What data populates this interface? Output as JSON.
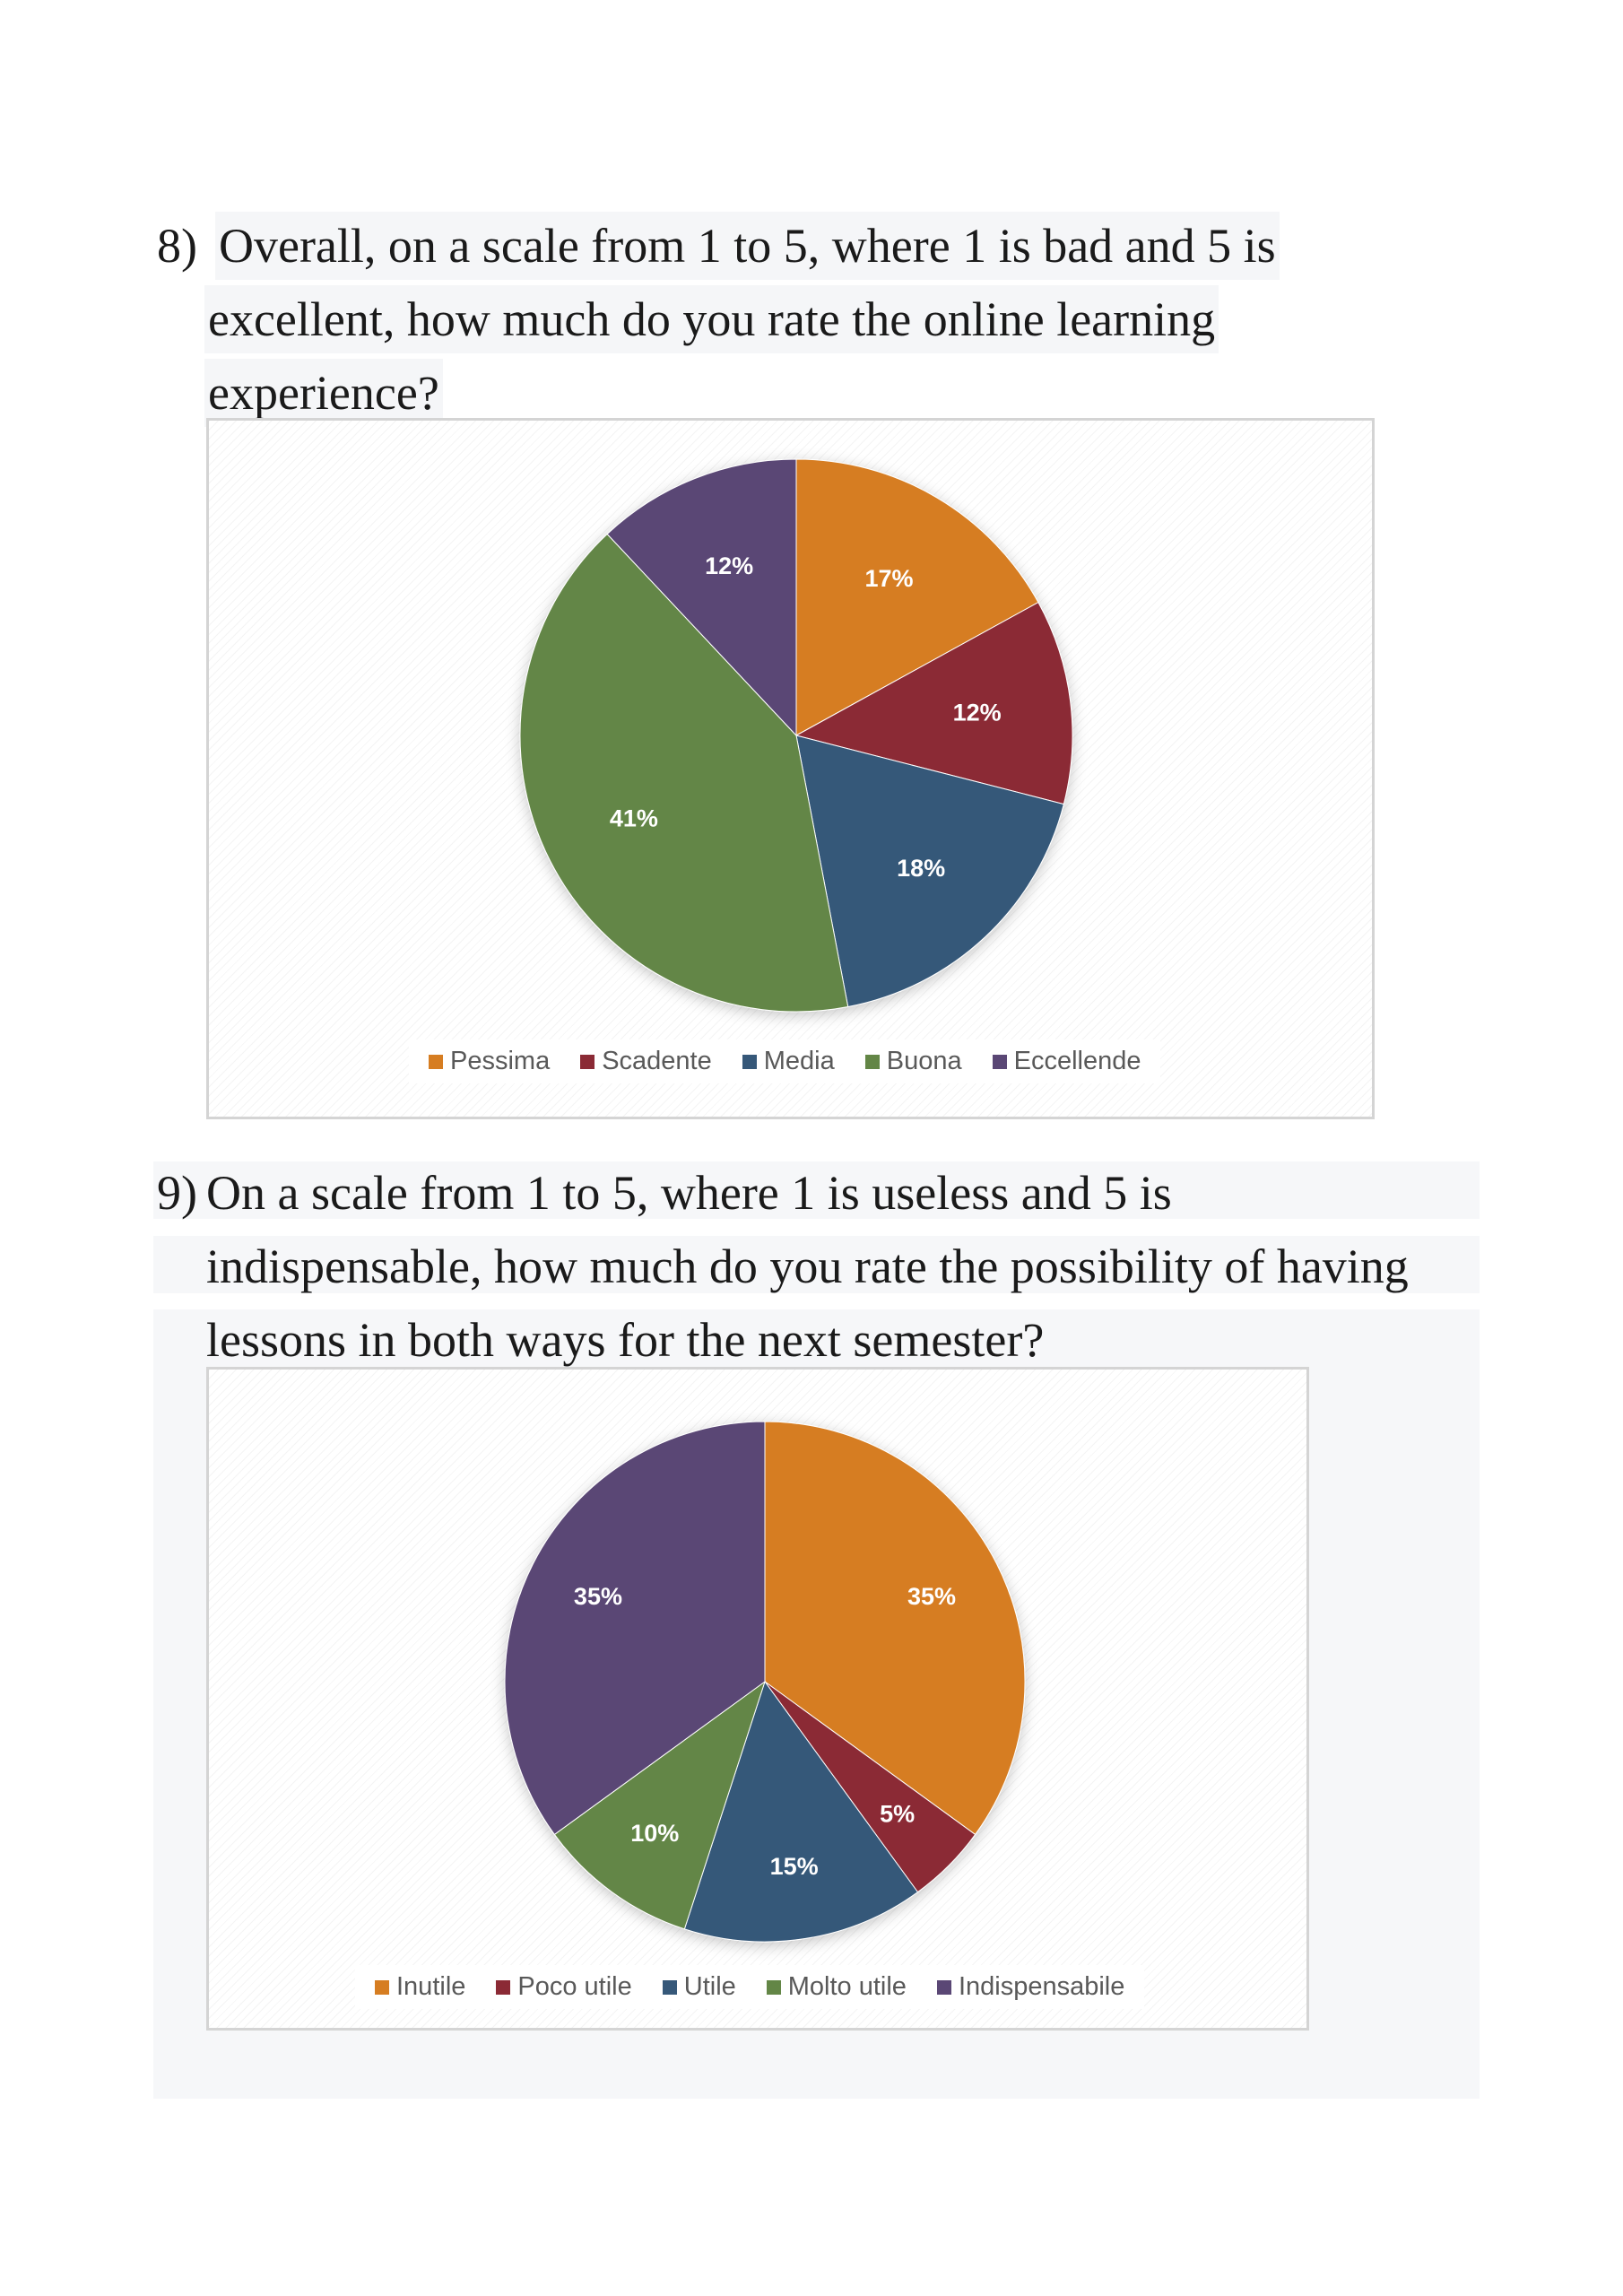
{
  "questions": [
    {
      "number": "8)",
      "lines": [
        "Overall, on a scale from 1 to 5, where 1 is bad and 5 is",
        "excellent, how much do you rate the online learning",
        "experience?"
      ]
    },
    {
      "number": "9)",
      "lines": [
        "On a scale from 1 to 5, where 1 is useless and 5 is",
        "indispensable, how much do you rate the possibility of having",
        "lessons in both ways for the next semester?"
      ]
    }
  ],
  "chart_data": [
    {
      "type": "pie",
      "title": "",
      "categories": [
        "Pessima",
        "Scadente",
        "Media",
        "Buona",
        "Eccellende"
      ],
      "values": [
        17,
        12,
        18,
        41,
        12
      ],
      "labels": [
        "17%",
        "12%",
        "18%",
        "41%",
        "12%"
      ],
      "colors": [
        "#D67D21",
        "#8B2A35",
        "#365879",
        "#638646",
        "#5A4775"
      ],
      "legend_position": "bottom",
      "start_angle": "12 o'clock",
      "direction": "clockwise"
    },
    {
      "type": "pie",
      "title": "",
      "categories": [
        "Inutile",
        "Poco utile",
        "Utile",
        "Molto utile",
        "Indispensabile"
      ],
      "values": [
        35,
        5,
        15,
        10,
        35
      ],
      "labels": [
        "35%",
        "5%",
        "15%",
        "10%",
        "35%"
      ],
      "colors": [
        "#D67D21",
        "#8B2A35",
        "#365879",
        "#638646",
        "#5A4775"
      ],
      "legend_position": "bottom",
      "start_angle": "12 o'clock",
      "direction": "clockwise"
    }
  ]
}
